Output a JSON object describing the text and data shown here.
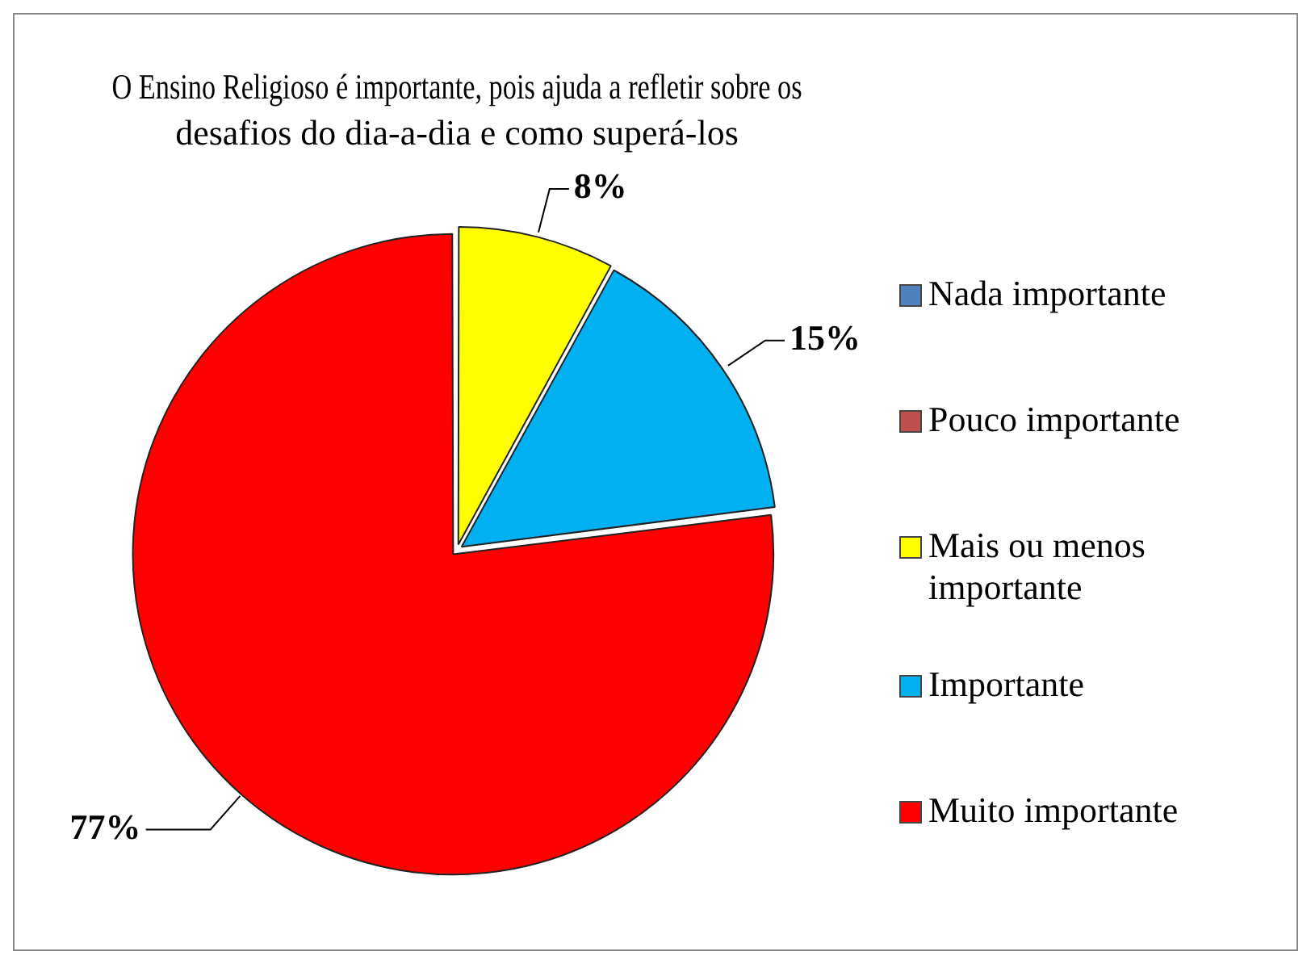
{
  "chart_data": {
    "type": "pie",
    "title": "O Ensino Religioso é importante, pois ajuda a refletir sobre os desafios do dia-a-dia e como superá-los",
    "categories": [
      "Nada importante",
      "Pouco importante",
      "Mais ou menos importante",
      "Importante",
      "Muito importante"
    ],
    "values": [
      0,
      0,
      8,
      15,
      77
    ],
    "colors": [
      "#4f81bd",
      "#c0504d",
      "#ffff00",
      "#00b0f0",
      "#ff0000"
    ],
    "value_labels": [
      null,
      null,
      "8%",
      "15%",
      "77%"
    ],
    "legend": "right"
  }
}
